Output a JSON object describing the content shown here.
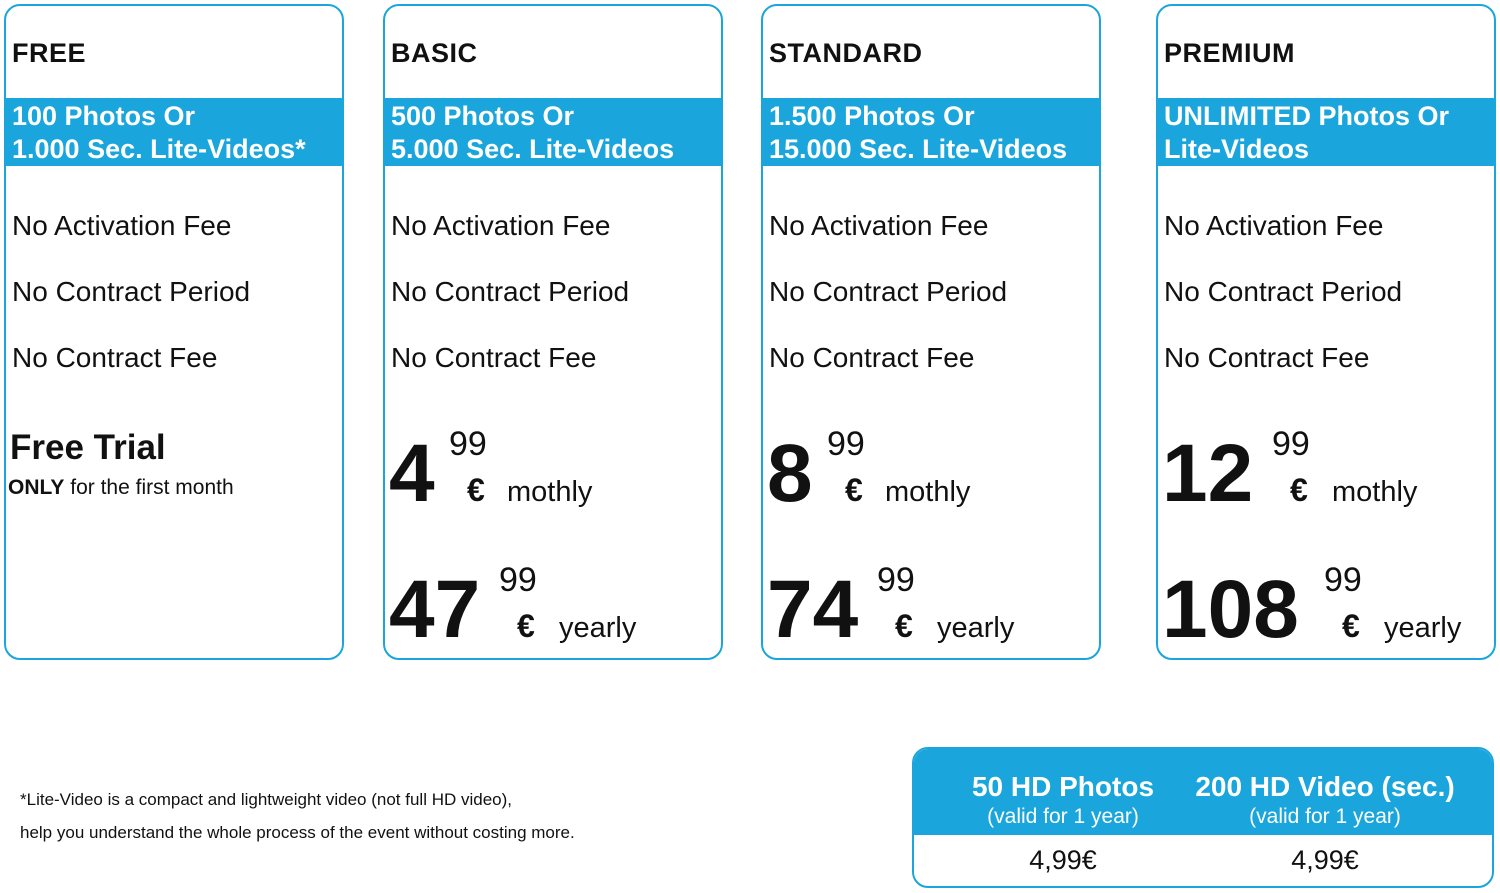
{
  "plans": [
    {
      "name": "FREE",
      "quota": [
        "100 Photos Or",
        "1.000 Sec. Lite-Videos*"
      ],
      "features": [
        "No Activation Fee",
        "No Contract Period",
        "No Contract Fee"
      ],
      "trial_title": "Free Trial",
      "trial_only": "ONLY",
      "trial_rest": " for the first month"
    },
    {
      "name": "BASIC",
      "quota": [
        "500 Photos Or",
        "5.000 Sec. Lite-Videos"
      ],
      "features": [
        "No Activation Fee",
        "No Contract Period",
        "No Contract Fee"
      ],
      "monthly": {
        "whole": "4",
        "cents": "99",
        "currency": "€",
        "period": "mothly"
      },
      "yearly": {
        "whole": "47",
        "cents": "99",
        "currency": "€",
        "period": "yearly"
      }
    },
    {
      "name": "STANDARD",
      "quota": [
        "1.500 Photos Or",
        "15.000 Sec. Lite-Videos"
      ],
      "features": [
        "No Activation Fee",
        "No Contract Period",
        "No Contract Fee"
      ],
      "monthly": {
        "whole": "8",
        "cents": "99",
        "currency": "€",
        "period": "mothly"
      },
      "yearly": {
        "whole": "74",
        "cents": "99",
        "currency": "€",
        "period": "yearly"
      }
    },
    {
      "name": "PREMIUM",
      "quota": [
        "UNLIMITED Photos Or",
        "Lite-Videos"
      ],
      "features": [
        "No Activation Fee",
        "No Contract Period",
        "No Contract Fee"
      ],
      "monthly": {
        "whole": "12",
        "cents": "99",
        "currency": "€",
        "period": "mothly"
      },
      "yearly": {
        "whole": "108",
        "cents": "99",
        "currency": "€",
        "period": "yearly"
      }
    }
  ],
  "footnote": [
    "*Lite-Video is a compact and lightweight video (not full HD video),",
    "help you understand the whole process of the event without costing more."
  ],
  "addons": [
    {
      "title": "50 HD Photos",
      "subtitle": "(valid for 1 year)",
      "price": "4,99€"
    },
    {
      "title": "200 HD Video (sec.)",
      "subtitle": "(valid for 1 year)",
      "price": "4,99€"
    }
  ],
  "colors": {
    "accent": "#1aa6dc"
  }
}
